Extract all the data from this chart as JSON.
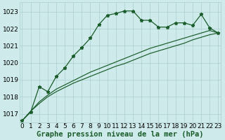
{
  "x": [
    0,
    1,
    2,
    3,
    4,
    5,
    6,
    7,
    8,
    9,
    10,
    11,
    12,
    13,
    14,
    15,
    16,
    17,
    18,
    19,
    20,
    21,
    22,
    23
  ],
  "line_peaked": [
    1016.6,
    1017.1,
    1018.6,
    1018.3,
    1019.2,
    1019.7,
    1020.4,
    1020.9,
    1021.45,
    1022.25,
    1022.8,
    1022.9,
    1023.05,
    1023.05,
    1022.5,
    1022.5,
    1022.1,
    1022.1,
    1022.35,
    1022.35,
    1022.2,
    1022.85,
    1022.05,
    1021.75
  ],
  "line_straight1": [
    1016.6,
    1017.15,
    1017.6,
    1018.0,
    1018.3,
    1018.55,
    1018.8,
    1019.0,
    1019.2,
    1019.4,
    1019.6,
    1019.8,
    1019.95,
    1020.15,
    1020.35,
    1020.55,
    1020.7,
    1020.85,
    1021.0,
    1021.15,
    1021.35,
    1021.5,
    1021.65,
    1021.75
  ],
  "line_straight2": [
    1016.6,
    1017.15,
    1017.7,
    1018.1,
    1018.45,
    1018.7,
    1018.95,
    1019.2,
    1019.45,
    1019.65,
    1019.85,
    1020.05,
    1020.25,
    1020.45,
    1020.65,
    1020.85,
    1021.0,
    1021.15,
    1021.3,
    1021.45,
    1021.6,
    1021.75,
    1021.9,
    1021.75
  ],
  "bg_color": "#ceeaea",
  "grid_color": "#aacece",
  "line_color": "#1a5c2a",
  "xlabel": "Graphe pression niveau de la mer (hPa)",
  "ylim": [
    1016.5,
    1023.55
  ],
  "yticks": [
    1017,
    1018,
    1019,
    1020,
    1021,
    1022,
    1023
  ],
  "xlabel_fontsize": 7.5,
  "tick_fontsize": 6.5
}
